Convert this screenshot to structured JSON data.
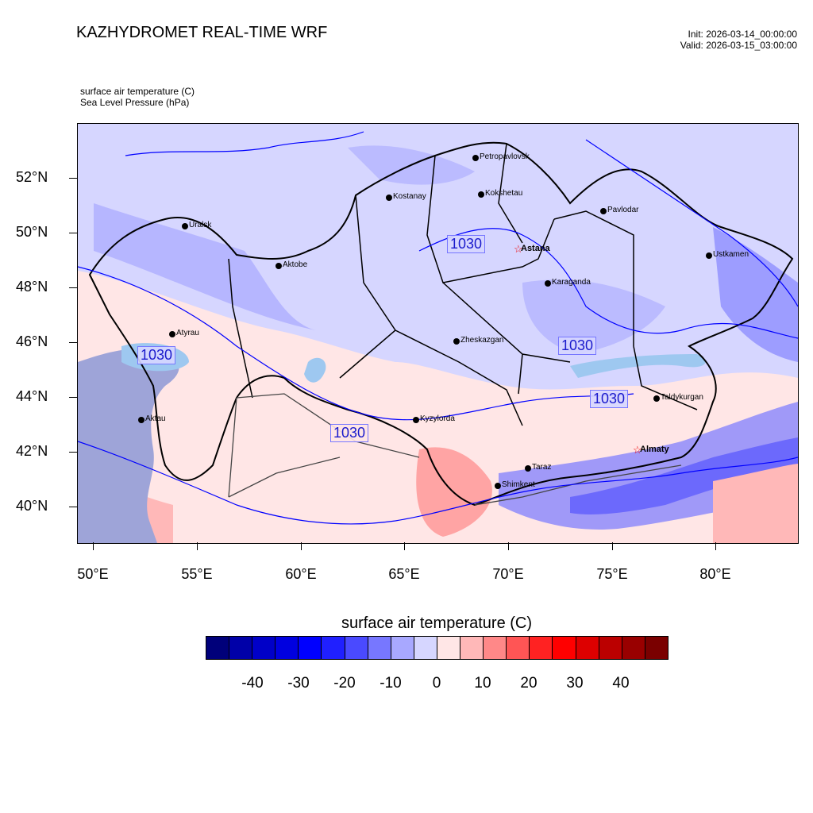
{
  "header": {
    "title": "KAZHYDROMET REAL-TIME WRF",
    "init": "Init: 2026-03-14_00:00:00",
    "valid": "Valid: 2026-03-15_03:00:00"
  },
  "fields": {
    "temp_label": "surface air temperature   (C)",
    "pressure_label": "Sea Level Pressure   (hPa)"
  },
  "axes": {
    "lat_labels": [
      "52°N",
      "50°N",
      "48°N",
      "46°N",
      "44°N",
      "42°N",
      "40°N"
    ],
    "lon_labels": [
      "50°E",
      "55°E",
      "60°E",
      "65°E",
      "70°E",
      "75°E",
      "80°E"
    ]
  },
  "cities": [
    {
      "name": "Petropavlovsk",
      "capital": false
    },
    {
      "name": "Kostanay",
      "capital": false
    },
    {
      "name": "Kokshetau",
      "capital": false
    },
    {
      "name": "Pavlodar",
      "capital": false
    },
    {
      "name": "Uralsk",
      "capital": false
    },
    {
      "name": "Aktobe",
      "capital": false
    },
    {
      "name": "Astana",
      "capital": true
    },
    {
      "name": "Ustkamen",
      "capital": false
    },
    {
      "name": "Karaganda",
      "capital": false
    },
    {
      "name": "Atyrau",
      "capital": false
    },
    {
      "name": "Zheskazgan",
      "capital": false
    },
    {
      "name": "Taldykurgan",
      "capital": false
    },
    {
      "name": "Kyzylorda",
      "capital": false
    },
    {
      "name": "Aktau",
      "capital": false
    },
    {
      "name": "Almaty",
      "capital": true
    },
    {
      "name": "Taraz",
      "capital": false
    },
    {
      "name": "Shimkent",
      "capital": false
    }
  ],
  "isobar_labels": [
    "1030",
    "1030",
    "1030",
    "1030",
    "1030"
  ],
  "colorbar": {
    "title": "surface air temperature  (C)",
    "labels": [
      "-40",
      "-30",
      "-20",
      "-10",
      "0",
      "10",
      "20",
      "30",
      "40"
    ],
    "colors": [
      "#00007a",
      "#0000a8",
      "#0000c8",
      "#0000e0",
      "#0000ff",
      "#2020ff",
      "#4a4aff",
      "#7777ff",
      "#a8a8ff",
      "#d6d6ff",
      "#ffe6e6",
      "#ffb8b8",
      "#ff8888",
      "#ff5555",
      "#ff2222",
      "#ff0000",
      "#dd0000",
      "#bb0000",
      "#990000",
      "#7a0000"
    ]
  }
}
